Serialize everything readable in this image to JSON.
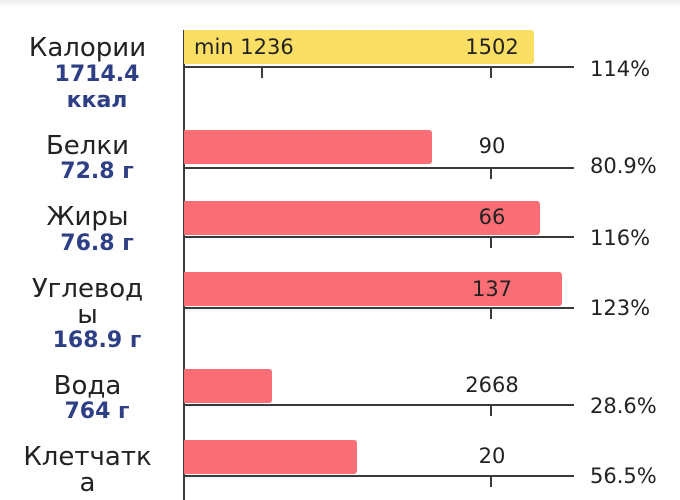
{
  "colors": {
    "calories_bar": "#fbdf64",
    "nutrient_bar": "#fb6e76",
    "value_text": "#2e3f85"
  },
  "calories": {
    "name": "Калории",
    "value_line1": "1714.4",
    "value_line2": "ккал",
    "min_label": "min 1236",
    "target": "1502",
    "percent": "114%",
    "fill_fraction": 1.14
  },
  "nutrients": [
    {
      "name_line1": "Белки",
      "name_line2": "",
      "value": "72.8 г",
      "target": "90",
      "percent": "80.9%",
      "fill_fraction": 0.809
    },
    {
      "name_line1": "Жиры",
      "name_line2": "",
      "value": "76.8 г",
      "target": "66",
      "percent": "116%",
      "fill_fraction": 1.16
    },
    {
      "name_line1": "Углевод",
      "name_line2": "ы",
      "value": "168.9 г",
      "target": "137",
      "percent": "123%",
      "fill_fraction": 1.23
    },
    {
      "name_line1": "Вода",
      "name_line2": "",
      "value": "764 г",
      "target": "2668",
      "percent": "28.6%",
      "fill_fraction": 0.286
    },
    {
      "name_line1": "Клетчатк",
      "name_line2": "а",
      "value": "",
      "target": "20",
      "percent": "56.5%",
      "fill_fraction": 0.565
    }
  ]
}
